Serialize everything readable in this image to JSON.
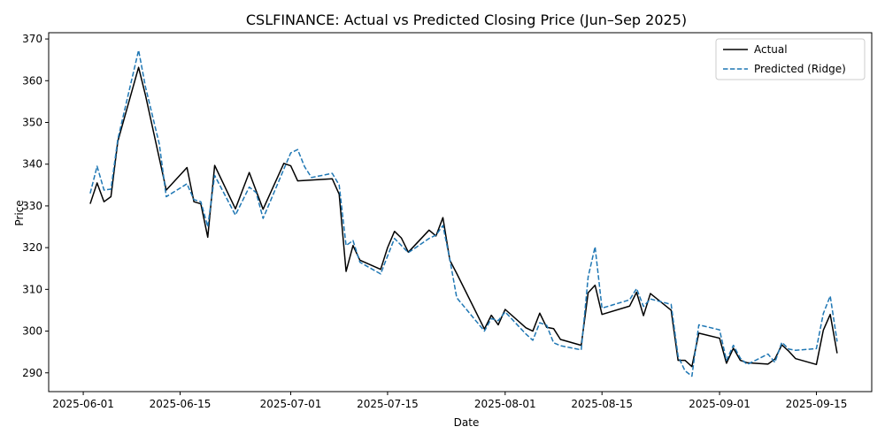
{
  "chart_data": {
    "type": "line",
    "title": "CSLFINANCE: Actual vs Predicted Closing Price (Jun–Sep 2025)",
    "xlabel": "Date",
    "ylabel": "Price",
    "xlim": [
      "2025-05-27",
      "2025-09-23"
    ],
    "ylim": [
      285.5,
      371.5
    ],
    "x_ticks": [
      "2025-06-01",
      "2025-06-15",
      "2025-07-01",
      "2025-07-15",
      "2025-08-01",
      "2025-08-15",
      "2025-09-01",
      "2025-09-15"
    ],
    "y_ticks": [
      290,
      300,
      310,
      320,
      330,
      340,
      350,
      360,
      370
    ],
    "grid": false,
    "legend_position": "top-right",
    "colors": {
      "actual": "#000000",
      "predicted": "#1f77b4"
    },
    "series": [
      {
        "name": "Actual",
        "style": "solid",
        "points": [
          [
            "2025-06-02",
            330.5
          ],
          [
            "2025-06-03",
            335.5
          ],
          [
            "2025-06-04",
            331.0
          ],
          [
            "2025-06-05",
            332.2
          ],
          [
            "2025-06-06",
            345.5
          ],
          [
            "2025-06-09",
            363.2
          ],
          [
            "2025-06-10",
            356.5
          ],
          [
            "2025-06-13",
            333.8
          ],
          [
            "2025-06-16",
            339.2
          ],
          [
            "2025-06-17",
            331.0
          ],
          [
            "2025-06-18",
            330.5
          ],
          [
            "2025-06-19",
            322.5
          ],
          [
            "2025-06-20",
            339.7
          ],
          [
            "2025-06-23",
            329.3
          ],
          [
            "2025-06-25",
            338.0
          ],
          [
            "2025-06-27",
            329.2
          ],
          [
            "2025-06-30",
            340.2
          ],
          [
            "2025-07-01",
            339.6
          ],
          [
            "2025-07-02",
            336.0
          ],
          [
            "2025-07-07",
            336.5
          ],
          [
            "2025-07-08",
            332.8
          ],
          [
            "2025-07-09",
            314.3
          ],
          [
            "2025-07-10",
            320.5
          ],
          [
            "2025-07-11",
            317.0
          ],
          [
            "2025-07-14",
            314.8
          ],
          [
            "2025-07-15",
            320.0
          ],
          [
            "2025-07-16",
            323.9
          ],
          [
            "2025-07-17",
            322.3
          ],
          [
            "2025-07-18",
            318.9
          ],
          [
            "2025-07-21",
            324.2
          ],
          [
            "2025-07-22",
            322.8
          ],
          [
            "2025-07-23",
            327.2
          ],
          [
            "2025-07-24",
            317.0
          ],
          [
            "2025-07-25",
            313.8
          ],
          [
            "2025-07-29",
            300.5
          ],
          [
            "2025-07-30",
            303.8
          ],
          [
            "2025-07-31",
            301.5
          ],
          [
            "2025-08-01",
            305.2
          ],
          [
            "2025-08-04",
            300.8
          ],
          [
            "2025-08-05",
            300.0
          ],
          [
            "2025-08-06",
            304.3
          ],
          [
            "2025-08-07",
            300.9
          ],
          [
            "2025-08-08",
            300.6
          ],
          [
            "2025-08-09",
            298.0
          ],
          [
            "2025-08-12",
            296.6
          ],
          [
            "2025-08-13",
            309.2
          ],
          [
            "2025-08-14",
            311.0
          ],
          [
            "2025-08-15",
            304.0
          ],
          [
            "2025-08-19",
            306.0
          ],
          [
            "2025-08-20",
            309.3
          ],
          [
            "2025-08-21",
            303.7
          ],
          [
            "2025-08-22",
            309.0
          ],
          [
            "2025-08-25",
            305.0
          ],
          [
            "2025-08-26",
            293.0
          ],
          [
            "2025-08-27",
            293.0
          ],
          [
            "2025-08-28",
            291.5
          ],
          [
            "2025-08-29",
            299.5
          ],
          [
            "2025-09-01",
            298.3
          ],
          [
            "2025-09-02",
            292.3
          ],
          [
            "2025-09-03",
            295.9
          ],
          [
            "2025-09-04",
            293.0
          ],
          [
            "2025-09-05",
            292.4
          ],
          [
            "2025-09-08",
            292.1
          ],
          [
            "2025-09-09",
            293.3
          ],
          [
            "2025-09-10",
            296.7
          ],
          [
            "2025-09-11",
            295.2
          ],
          [
            "2025-09-12",
            293.4
          ],
          [
            "2025-09-15",
            292.0
          ],
          [
            "2025-09-16",
            300.2
          ],
          [
            "2025-09-17",
            304.0
          ],
          [
            "2025-09-18",
            294.7
          ]
        ]
      },
      {
        "name": "Predicted (Ridge)",
        "style": "dashed",
        "points": [
          [
            "2025-06-02",
            333.0
          ],
          [
            "2025-06-03",
            339.5
          ],
          [
            "2025-06-04",
            333.8
          ],
          [
            "2025-06-05",
            334.0
          ],
          [
            "2025-06-06",
            346.0
          ],
          [
            "2025-06-09",
            367.3
          ],
          [
            "2025-06-10",
            358.5
          ],
          [
            "2025-06-12",
            344.8
          ],
          [
            "2025-06-13",
            332.2
          ],
          [
            "2025-06-16",
            335.3
          ],
          [
            "2025-06-17",
            331.5
          ],
          [
            "2025-06-18",
            331.0
          ],
          [
            "2025-06-19",
            325.0
          ],
          [
            "2025-06-20",
            337.3
          ],
          [
            "2025-06-23",
            327.8
          ],
          [
            "2025-06-25",
            334.5
          ],
          [
            "2025-06-26",
            333.2
          ],
          [
            "2025-06-27",
            327.0
          ],
          [
            "2025-06-30",
            338.8
          ],
          [
            "2025-07-01",
            342.7
          ],
          [
            "2025-07-02",
            343.5
          ],
          [
            "2025-07-03",
            339.4
          ],
          [
            "2025-07-04",
            336.8
          ],
          [
            "2025-07-07",
            337.8
          ],
          [
            "2025-07-08",
            335.0
          ],
          [
            "2025-07-09",
            320.5
          ],
          [
            "2025-07-10",
            321.7
          ],
          [
            "2025-07-11",
            316.5
          ],
          [
            "2025-07-14",
            313.7
          ],
          [
            "2025-07-15",
            318.0
          ],
          [
            "2025-07-16",
            322.2
          ],
          [
            "2025-07-17",
            320.5
          ],
          [
            "2025-07-18",
            318.8
          ],
          [
            "2025-07-21",
            322.2
          ],
          [
            "2025-07-22",
            323.0
          ],
          [
            "2025-07-23",
            325.3
          ],
          [
            "2025-07-24",
            317.2
          ],
          [
            "2025-07-25",
            308.0
          ],
          [
            "2025-07-29",
            300.0
          ],
          [
            "2025-07-30",
            303.0
          ],
          [
            "2025-07-31",
            302.5
          ],
          [
            "2025-08-01",
            304.6
          ],
          [
            "2025-08-04",
            299.3
          ],
          [
            "2025-08-05",
            297.8
          ],
          [
            "2025-08-06",
            302.0
          ],
          [
            "2025-08-07",
            301.4
          ],
          [
            "2025-08-08",
            297.2
          ],
          [
            "2025-08-09",
            296.5
          ],
          [
            "2025-08-12",
            295.5
          ],
          [
            "2025-08-13",
            313.0
          ],
          [
            "2025-08-14",
            320.2
          ],
          [
            "2025-08-15",
            305.5
          ],
          [
            "2025-08-19",
            307.5
          ],
          [
            "2025-08-20",
            310.2
          ],
          [
            "2025-08-21",
            305.9
          ],
          [
            "2025-08-22",
            307.7
          ],
          [
            "2025-08-25",
            306.4
          ],
          [
            "2025-08-26",
            294.0
          ],
          [
            "2025-08-27",
            290.5
          ],
          [
            "2025-08-28",
            289.2
          ],
          [
            "2025-08-29",
            301.5
          ],
          [
            "2025-09-01",
            300.3
          ],
          [
            "2025-09-02",
            293.0
          ],
          [
            "2025-09-03",
            296.6
          ],
          [
            "2025-09-04",
            293.5
          ],
          [
            "2025-09-05",
            292.0
          ],
          [
            "2025-09-08",
            294.5
          ],
          [
            "2025-09-09",
            292.5
          ],
          [
            "2025-09-10",
            297.3
          ],
          [
            "2025-09-11",
            295.7
          ],
          [
            "2025-09-12",
            295.4
          ],
          [
            "2025-09-15",
            295.8
          ],
          [
            "2025-09-16",
            304.2
          ],
          [
            "2025-09-17",
            308.4
          ],
          [
            "2025-09-18",
            297.5
          ]
        ]
      }
    ]
  }
}
